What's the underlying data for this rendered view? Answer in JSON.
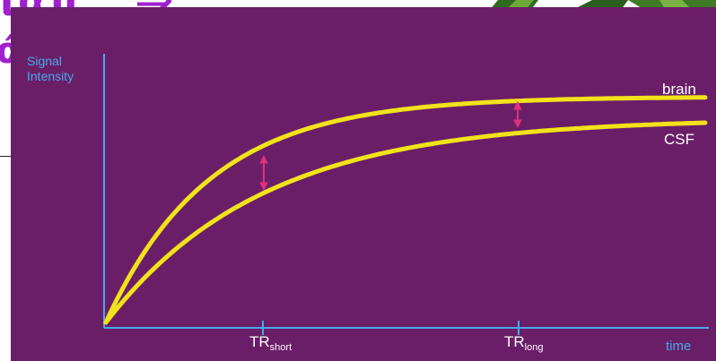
{
  "diagram": {
    "y_axis_label_line1": "Signal",
    "y_axis_label_line2": "Intensity",
    "x_axis_label": "time",
    "curves": [
      {
        "name": "brain",
        "color": "#f2e21a"
      },
      {
        "name": "CSF",
        "color": "#f2e21a"
      }
    ],
    "ticks": [
      {
        "main": "TR",
        "sub": "short"
      },
      {
        "main": "TR",
        "sub": "long"
      }
    ],
    "difference_arrow_color": "#e0307a",
    "axis_color": "#4aa8e8",
    "background_color": "#6a1e68"
  },
  "slide_fragments": {
    "title_partial_left": "ιαπ",
    "title_partial_arrow": "⇒",
    "title_partial_second_line": "ά",
    "title_color": "#a020d0"
  }
}
